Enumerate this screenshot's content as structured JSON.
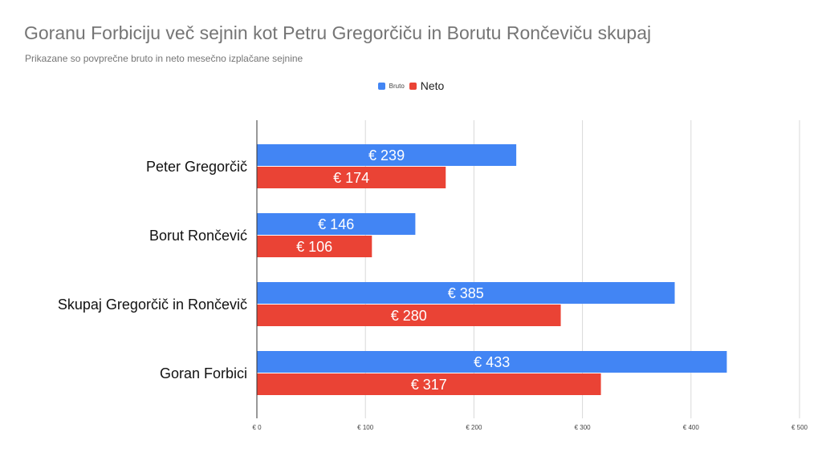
{
  "chart_data": {
    "type": "bar",
    "orientation": "horizontal",
    "title": "Goranu Forbiciju več sejnin kot Petru Gregorčiču in Borutu Rončeviču skupaj",
    "subtitle": "Prikazane so povprečne bruto in neto mesečno izplačane sejnine",
    "categories": [
      "Peter Gregorčič",
      "Borut Rončević",
      "Skupaj Gregorčič in Rončevič",
      "Goran Forbici"
    ],
    "series": [
      {
        "name": "Bruto",
        "color": "#4285f4",
        "values": [
          239,
          146,
          385,
          433
        ],
        "labels": [
          "€ 239",
          "€ 146",
          "€ 385",
          "€ 433"
        ]
      },
      {
        "name": "Neto",
        "color": "#ea4335",
        "values": [
          174,
          106,
          280,
          317
        ],
        "labels": [
          "€ 174",
          "€ 106",
          "€ 280",
          "€ 317"
        ]
      }
    ],
    "xlim": [
      0,
      500
    ],
    "xticks": [
      0,
      100,
      200,
      300,
      400,
      500
    ],
    "xtick_labels": [
      "€ 0",
      "€ 100",
      "€ 200",
      "€ 300",
      "€ 400",
      "€ 500"
    ],
    "grid": true,
    "legend_position": "top-center"
  }
}
